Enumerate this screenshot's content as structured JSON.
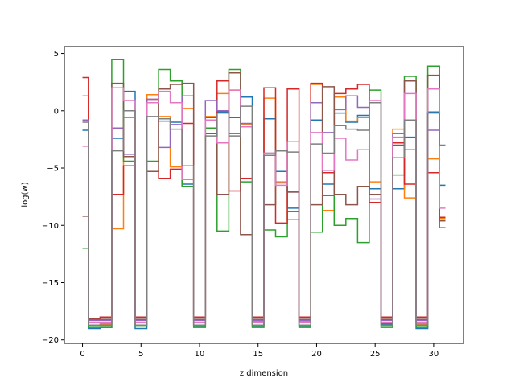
{
  "chart_data": {
    "type": "line",
    "step": "mid",
    "title": "",
    "xlabel": "z dimension",
    "ylabel": "log(w)",
    "xlim": [
      -1.55,
      32.55
    ],
    "ylim": [
      -20.3,
      5.6
    ],
    "xticks": [
      0,
      5,
      10,
      15,
      20,
      25,
      30
    ],
    "yticks": [
      -20,
      -15,
      -10,
      -5,
      0,
      5
    ],
    "xtick_labels": [
      "0",
      "5",
      "10",
      "15",
      "20",
      "25",
      "30"
    ],
    "ytick_labels": [
      "−20",
      "−15",
      "−10",
      "−5",
      "0",
      "5"
    ],
    "grid": false,
    "legend": "none",
    "x": [
      0,
      1,
      2,
      3,
      4,
      5,
      6,
      7,
      8,
      9,
      10,
      11,
      12,
      13,
      14,
      15,
      16,
      17,
      18,
      19,
      20,
      21,
      22,
      23,
      24,
      25,
      26,
      27,
      28,
      29,
      30,
      31
    ],
    "series": [
      {
        "color": "#1f77b4",
        "values": [
          -1.7,
          -19.0,
          -18.9,
          -2.4,
          1.7,
          -19.0,
          1.4,
          -0.9,
          -1.0,
          -6.4,
          -18.8,
          -0.6,
          -0.1,
          -0.6,
          1.2,
          -18.8,
          -0.7,
          -5.3,
          -8.5,
          -18.8,
          -0.8,
          -6.4,
          -0.2,
          -1.0,
          -0.4,
          -6.8,
          -18.6,
          -6.8,
          -2.3,
          -19.0,
          -0.1,
          -6.5
        ]
      },
      {
        "color": "#ff7f0e",
        "values": [
          1.3,
          -18.5,
          -18.6,
          -10.3,
          -0.6,
          -18.7,
          1.4,
          -0.5,
          -4.9,
          0.2,
          -18.7,
          -0.5,
          1.5,
          1.8,
          -1.2,
          -18.4,
          1.1,
          -6.2,
          -9.5,
          -18.4,
          2.3,
          -8.7,
          1.2,
          -0.9,
          -0.6,
          -6.2,
          -18.2,
          -1.6,
          -7.6,
          -18.6,
          -4.2,
          -9.4
        ]
      },
      {
        "color": "#2ca02c",
        "values": [
          -12.0,
          -18.9,
          -18.9,
          4.5,
          -4.4,
          -18.8,
          -4.4,
          3.6,
          2.6,
          -6.6,
          -18.9,
          -1.5,
          -10.5,
          3.6,
          -6.2,
          -18.9,
          -10.4,
          -11.0,
          -8.8,
          -18.9,
          -10.6,
          -7.4,
          -10.0,
          -9.4,
          -11.5,
          1.8,
          -18.9,
          -5.6,
          3.0,
          -18.9,
          3.9,
          -10.2
        ]
      },
      {
        "color": "#d62728",
        "values": [
          2.9,
          -18.1,
          -18.0,
          -7.3,
          -4.8,
          -18.0,
          1.0,
          -5.9,
          -5.1,
          -1.1,
          -18.0,
          -2.0,
          2.6,
          -7.0,
          -5.9,
          -18.0,
          2.0,
          -9.8,
          1.9,
          -18.0,
          2.4,
          -5.4,
          1.5,
          1.9,
          2.3,
          -8.0,
          -18.0,
          -2.8,
          -6.4,
          -18.0,
          -5.4,
          -9.3
        ]
      },
      {
        "color": "#9467bd",
        "values": [
          -0.8,
          -18.3,
          -18.3,
          -1.5,
          -3.8,
          -18.3,
          1.0,
          -3.2,
          -1.2,
          1.3,
          -18.3,
          0.9,
          0.0,
          -2.0,
          -1.1,
          -18.3,
          -3.7,
          -6.3,
          -7.1,
          -18.3,
          0.7,
          -1.9,
          0.1,
          1.3,
          0.3,
          -7.7,
          -18.3,
          -2.0,
          -3.4,
          -18.3,
          -1.7,
          -9.6
        ]
      },
      {
        "color": "#8c564b",
        "values": [
          -9.2,
          -18.2,
          -18.2,
          2.4,
          -4.0,
          -18.2,
          -5.3,
          1.9,
          2.3,
          2.4,
          -18.2,
          -2.0,
          -7.3,
          3.3,
          -10.8,
          -18.2,
          -8.2,
          -3.5,
          -7.1,
          -18.2,
          -8.2,
          2.1,
          -7.3,
          -8.2,
          -6.6,
          -7.3,
          -18.2,
          -3.0,
          2.6,
          -18.2,
          3.1,
          -9.6
        ]
      },
      {
        "color": "#e377c2",
        "values": [
          -3.1,
          -18.5,
          -18.5,
          2.0,
          0.9,
          -18.5,
          0.7,
          1.7,
          0.7,
          -6.0,
          -18.5,
          -0.8,
          -2.8,
          1.8,
          -1.4,
          -18.5,
          -3.7,
          -6.5,
          -2.7,
          -18.5,
          -1.9,
          -5.2,
          -2.4,
          -4.3,
          -3.4,
          0.9,
          -18.5,
          -2.3,
          1.5,
          -18.5,
          1.9,
          -8.5
        ]
      },
      {
        "color": "#7f7f7f",
        "values": [
          -1.0,
          -18.7,
          -18.7,
          -3.5,
          0.0,
          -18.7,
          -0.5,
          -0.7,
          -1.6,
          -4.8,
          -18.7,
          -2.2,
          -0.2,
          -2.2,
          0.4,
          -18.7,
          -3.9,
          -3.5,
          -3.6,
          -18.7,
          -2.9,
          -3.7,
          -1.3,
          -1.6,
          -1.7,
          0.7,
          -18.7,
          -4.1,
          -0.8,
          -18.7,
          -0.2,
          -3.0
        ]
      }
    ]
  }
}
